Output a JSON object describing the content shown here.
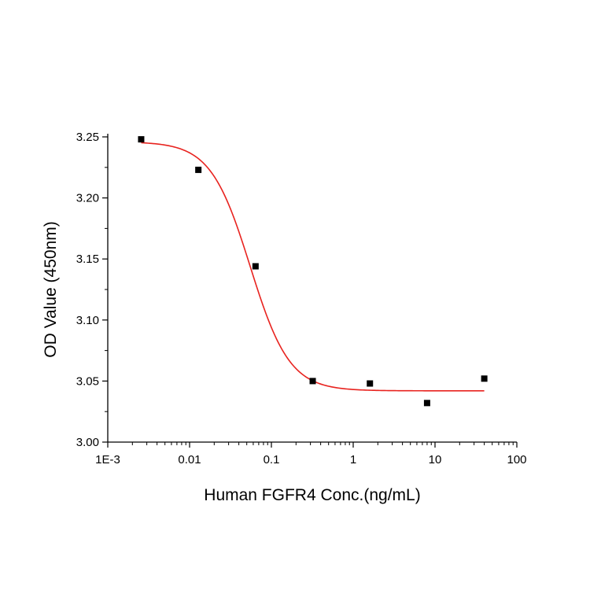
{
  "chart_data": {
    "type": "scatter",
    "xlabel": "Human FGFR4 Conc.(ng/mL)",
    "ylabel": "OD Value (450nm)",
    "x_scale": "log",
    "xlim": [
      0.001,
      100
    ],
    "ylim": [
      3.0,
      3.25
    ],
    "x_ticks": [
      {
        "value": 0.001,
        "label": "1E-3"
      },
      {
        "value": 0.01,
        "label": "0.01"
      },
      {
        "value": 0.1,
        "label": "0.1"
      },
      {
        "value": 1,
        "label": "1"
      },
      {
        "value": 10,
        "label": "10"
      },
      {
        "value": 100,
        "label": "100"
      }
    ],
    "y_ticks": [
      {
        "value": 3.0,
        "label": "3.00"
      },
      {
        "value": 3.05,
        "label": "3.05"
      },
      {
        "value": 3.1,
        "label": "3.10"
      },
      {
        "value": 3.15,
        "label": "3.15"
      },
      {
        "value": 3.2,
        "label": "3.20"
      },
      {
        "value": 3.25,
        "label": "3.25"
      }
    ],
    "points": [
      {
        "x": 0.00256,
        "y": 3.248
      },
      {
        "x": 0.0128,
        "y": 3.223
      },
      {
        "x": 0.064,
        "y": 3.144
      },
      {
        "x": 0.32,
        "y": 3.05
      },
      {
        "x": 1.6,
        "y": 3.048
      },
      {
        "x": 8.0,
        "y": 3.032
      },
      {
        "x": 40.0,
        "y": 3.052
      }
    ],
    "fit_curve": {
      "model": "4PL",
      "top": 3.246,
      "bottom": 3.042,
      "ec50": 0.055,
      "hill": 1.8,
      "x_range": [
        0.00256,
        40.0
      ],
      "color": "#e8231f"
    },
    "marker_color": "#000000",
    "grid": false,
    "legend": "none"
  }
}
